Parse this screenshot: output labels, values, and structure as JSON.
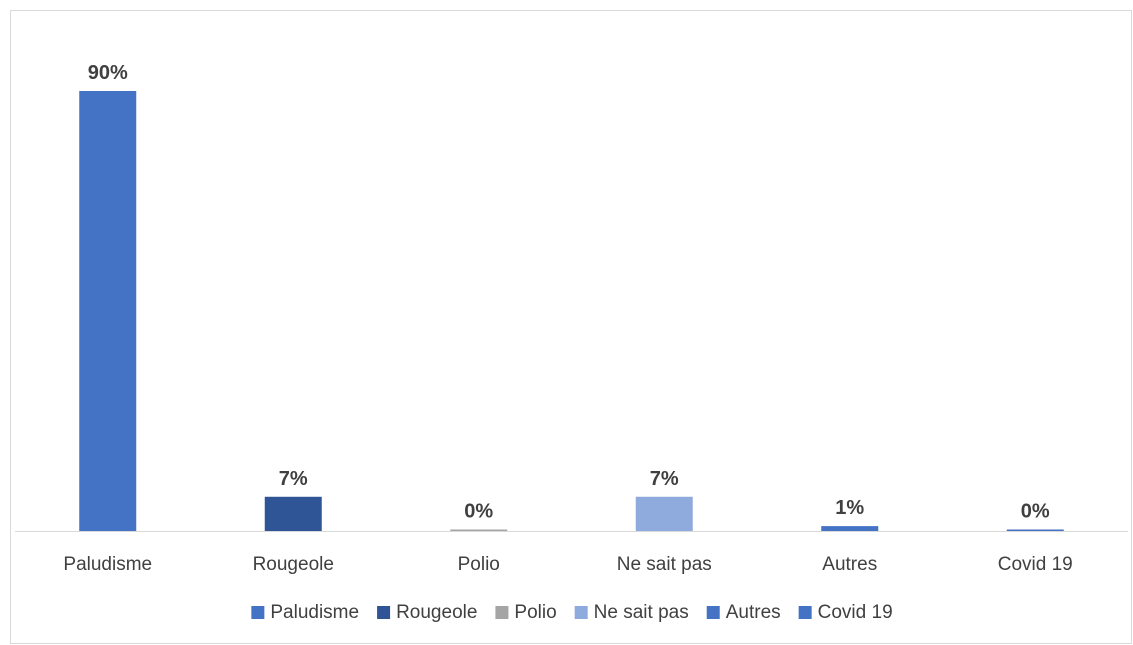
{
  "chart_data": {
    "type": "bar",
    "categories": [
      "Paludisme",
      "Rougeole",
      "Polio",
      "Ne sait pas",
      "Autres",
      "Covid 19"
    ],
    "values": [
      90,
      7,
      0,
      7,
      1,
      0
    ],
    "value_labels": [
      "90%",
      "7%",
      "0%",
      "7%",
      "1%",
      "0%"
    ],
    "colors": [
      "#4472c4",
      "#2f5597",
      "#a5a5a5",
      "#8faadc",
      "#4472c4",
      "#4472c4"
    ],
    "axis_color": "#d9d9d9",
    "title": "",
    "xlabel": "",
    "ylabel": "",
    "ylim": [
      0,
      90
    ],
    "grid": false,
    "legend": {
      "position": "bottom",
      "entries": [
        "Paludisme",
        "Rougeole",
        "Polio",
        "Ne sait pas",
        "Autres",
        "Covid 19"
      ]
    }
  }
}
